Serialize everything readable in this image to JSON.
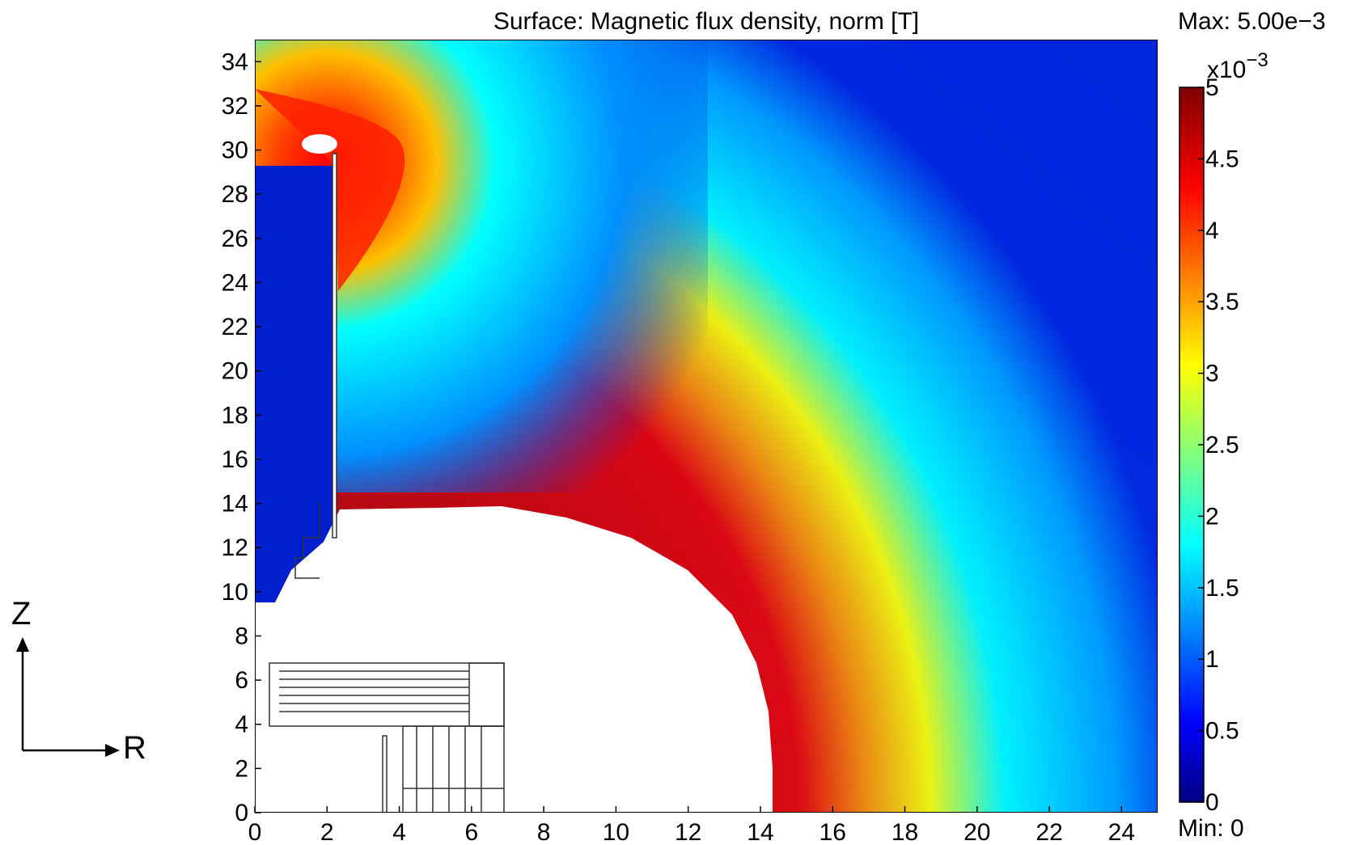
{
  "chart_data": {
    "type": "heatmap",
    "title": "Surface: Magnetic flux density, norm [T]",
    "xlim": [
      0,
      25
    ],
    "ylim": [
      0,
      35
    ],
    "x_ticks": [
      0,
      2,
      4,
      6,
      8,
      10,
      12,
      14,
      16,
      18,
      20,
      22,
      24
    ],
    "y_ticks": [
      0,
      2,
      4,
      6,
      8,
      10,
      12,
      14,
      16,
      18,
      20,
      22,
      24,
      26,
      28,
      30,
      32,
      34
    ],
    "colorbar": {
      "max_label": "Max: 5.00e−3",
      "min_label": "Min: 0",
      "exponent_base": "x10",
      "exponent_power": "−3",
      "range": [
        0,
        5
      ],
      "ticks": [
        0,
        0.5,
        1,
        1.5,
        2,
        2.5,
        3,
        3.5,
        4,
        4.5,
        5
      ],
      "tick_labels": [
        "0",
        "0.5",
        "1",
        "1.5",
        "2",
        "2.5",
        "3",
        "3.5",
        "4",
        "4.5",
        "5"
      ],
      "colormap": "jet",
      "colors": [
        "#00007f",
        "#0000ff",
        "#0080ff",
        "#00ffff",
        "#80ff80",
        "#ffff00",
        "#ff8000",
        "#ff0000",
        "#7f0000"
      ]
    },
    "axis_indicator": {
      "vertical_label": "Z",
      "horizontal_label": "R"
    },
    "annotations": []
  }
}
